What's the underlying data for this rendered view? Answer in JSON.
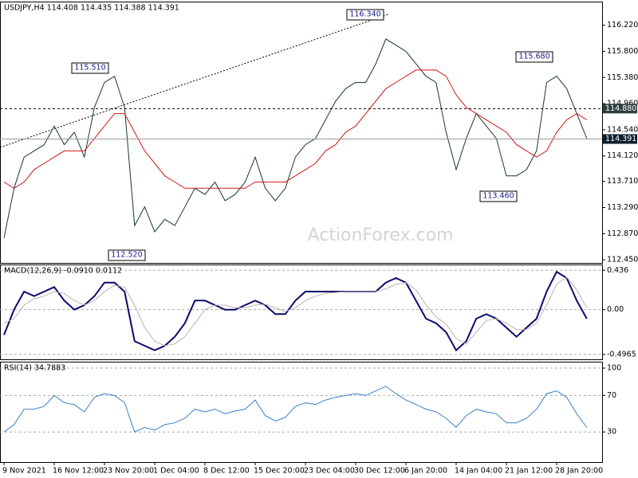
{
  "chart_data": [
    {
      "type": "line",
      "title": "USDJPY,H4  114.408 114.435 114.388 114.391",
      "watermark": "ActionForex.com",
      "ylim": [
        112.4,
        116.6
      ],
      "yticks": [
        {
          "value": 116.22,
          "label": "116.220"
        },
        {
          "value": 115.8,
          "label": "115.800"
        },
        {
          "value": 115.38,
          "label": "115.380"
        },
        {
          "value": 114.96,
          "label": "114.960"
        },
        {
          "value": 114.54,
          "label": "114.540"
        },
        {
          "value": 114.12,
          "label": "114.120"
        },
        {
          "value": 113.71,
          "label": "113.710"
        },
        {
          "value": 113.29,
          "label": "113.290"
        },
        {
          "value": 112.87,
          "label": "112.870"
        },
        {
          "value": 112.45,
          "label": "112.450"
        }
      ],
      "grid": false,
      "series": [
        {
          "color": "#17372f",
          "values": [
            112.8,
            113.6,
            114.1,
            114.2,
            114.3,
            114.6,
            114.3,
            114.5,
            114.1,
            114.9,
            115.3,
            115.4,
            114.9,
            113.0,
            113.3,
            112.9,
            113.1,
            113.0,
            113.3,
            113.6,
            113.5,
            113.7,
            113.4,
            113.5,
            113.7,
            114.1,
            113.6,
            113.4,
            113.6,
            114.1,
            114.3,
            114.4,
            114.7,
            115.0,
            115.2,
            115.3,
            115.3,
            115.6,
            116.0,
            115.9,
            115.8,
            115.6,
            115.4,
            115.3,
            114.5,
            113.9,
            114.4,
            114.8,
            114.6,
            114.4,
            113.8,
            113.8,
            113.9,
            114.2,
            115.3,
            115.4,
            115.2,
            114.8,
            114.4
          ]
        },
        {
          "color": "#d01818",
          "values": [
            113.7,
            113.6,
            113.7,
            113.9,
            114.0,
            114.1,
            114.2,
            114.2,
            114.2,
            114.4,
            114.6,
            114.8,
            114.8,
            114.5,
            114.2,
            114.0,
            113.8,
            113.7,
            113.6,
            113.6,
            113.6,
            113.6,
            113.6,
            113.6,
            113.6,
            113.7,
            113.7,
            113.7,
            113.7,
            113.8,
            113.9,
            114.0,
            114.2,
            114.3,
            114.5,
            114.6,
            114.8,
            115.0,
            115.2,
            115.3,
            115.4,
            115.5,
            115.5,
            115.5,
            115.4,
            115.1,
            114.9,
            114.8,
            114.7,
            114.6,
            114.5,
            114.3,
            114.2,
            114.1,
            114.2,
            114.5,
            114.7,
            114.8,
            114.7
          ]
        }
      ],
      "levels": [
        {
          "value": 114.88,
          "label": "114.880"
        },
        114.391
      ],
      "level_styles": [
        "dashed",
        "solid"
      ],
      "annotations": [
        "116.340",
        "115.510",
        "115.680",
        "113.460",
        "112.520"
      ]
    },
    {
      "type": "line",
      "title": "MACD(12,26,9) -0.0910 0.0112",
      "ylim": [
        -0.55,
        0.5
      ],
      "yticks": [
        0.436,
        {
          "value": 0,
          "label": "0.00"
        },
        -0.4965
      ],
      "grid": true,
      "series": [
        {
          "color": "#0a0a6e",
          "values": [
            -0.28,
            0.0,
            0.2,
            0.15,
            0.2,
            0.25,
            0.1,
            0.0,
            0.05,
            0.15,
            0.3,
            0.3,
            0.2,
            -0.35,
            -0.4,
            -0.45,
            -0.4,
            -0.3,
            -0.15,
            0.1,
            0.1,
            0.05,
            0.0,
            0.0,
            0.05,
            0.1,
            0.05,
            -0.05,
            -0.05,
            0.1,
            0.2,
            0.2,
            0.2,
            0.2,
            0.2,
            0.2,
            0.2,
            0.2,
            0.3,
            0.35,
            0.3,
            0.1,
            -0.1,
            -0.15,
            -0.25,
            -0.45,
            -0.35,
            -0.1,
            -0.05,
            -0.1,
            -0.2,
            -0.3,
            -0.2,
            -0.1,
            0.2,
            0.42,
            0.35,
            0.1,
            -0.1
          ]
        },
        {
          "color": "#c0b0b0",
          "values": [
            -0.15,
            -0.1,
            0.05,
            0.12,
            0.15,
            0.2,
            0.18,
            0.1,
            0.05,
            0.1,
            0.2,
            0.27,
            0.25,
            0.05,
            -0.2,
            -0.35,
            -0.4,
            -0.38,
            -0.3,
            -0.15,
            0.0,
            0.05,
            0.05,
            0.02,
            0.02,
            0.05,
            0.06,
            0.02,
            -0.02,
            0.02,
            0.1,
            0.15,
            0.18,
            0.19,
            0.2,
            0.2,
            0.2,
            0.2,
            0.23,
            0.28,
            0.3,
            0.22,
            0.05,
            -0.08,
            -0.16,
            -0.32,
            -0.38,
            -0.25,
            -0.12,
            -0.1,
            -0.15,
            -0.22,
            -0.22,
            -0.15,
            0.05,
            0.28,
            0.36,
            0.22,
            0.02
          ]
        }
      ]
    },
    {
      "type": "line",
      "title": "RSI(14) 34.7883",
      "ylim": [
        -3,
        107
      ],
      "yticks": [
        100,
        70,
        30
      ],
      "grid": true,
      "categories": [
        "9 Nov 2021",
        null,
        null,
        null,
        null,
        "16 Nov 12:00",
        null,
        null,
        null,
        null,
        "23 Nov 20:00",
        null,
        null,
        null,
        null,
        "1 Dec 04:00",
        null,
        null,
        null,
        null,
        "8 Dec 12:00",
        null,
        null,
        null,
        null,
        "15 Dec 20:00",
        null,
        null,
        null,
        null,
        "23 Dec 04:00",
        null,
        null,
        null,
        null,
        "30 Dec 12:00",
        null,
        null,
        null,
        null,
        "6 Jan 20:00",
        null,
        null,
        null,
        null,
        "14 Jan 04:00",
        null,
        null,
        null,
        null,
        "21 Jan 12:00",
        null,
        null,
        null,
        null,
        "28 Jan 20:00",
        null,
        null,
        null
      ],
      "series": [
        {
          "color": "#3a80c4",
          "values": [
            30,
            38,
            55,
            55,
            58,
            70,
            62,
            60,
            52,
            68,
            72,
            70,
            62,
            30,
            35,
            32,
            38,
            40,
            45,
            55,
            52,
            55,
            50,
            53,
            55,
            65,
            48,
            42,
            46,
            58,
            62,
            60,
            65,
            68,
            70,
            72,
            70,
            75,
            80,
            72,
            65,
            60,
            55,
            52,
            45,
            35,
            48,
            55,
            52,
            50,
            40,
            40,
            45,
            55,
            72,
            75,
            68,
            50,
            35
          ]
        }
      ]
    }
  ]
}
